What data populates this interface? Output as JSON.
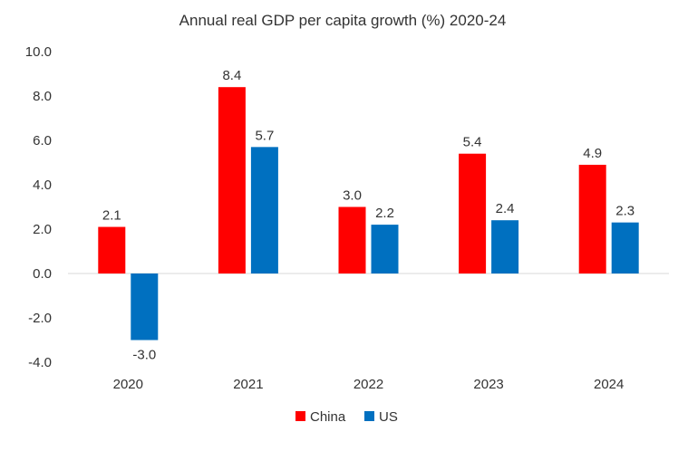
{
  "chart_data": {
    "type": "bar",
    "title": "Annual real GDP per capita growth (%) 2020-24",
    "xlabel": "",
    "ylabel": "",
    "categories": [
      "2020",
      "2021",
      "2022",
      "2023",
      "2024"
    ],
    "series": [
      {
        "name": "China",
        "color": "#ff0000",
        "values": [
          2.1,
          8.4,
          3.0,
          5.4,
          4.9
        ],
        "labels": [
          "2.1",
          "8.4",
          "3.0",
          "5.4",
          "4.9"
        ]
      },
      {
        "name": "US",
        "color": "#0070c0",
        "values": [
          -3.0,
          5.7,
          2.2,
          2.4,
          2.3
        ],
        "labels": [
          "-3.0",
          "5.7",
          "2.2",
          "2.4",
          "2.3"
        ]
      }
    ],
    "ylim": [
      -4.0,
      10.0
    ],
    "yticks": [
      "-4.0",
      "-2.0",
      "0.0",
      "2.0",
      "4.0",
      "6.0",
      "8.0",
      "10.0"
    ],
    "grid": false,
    "legend_position": "bottom"
  }
}
